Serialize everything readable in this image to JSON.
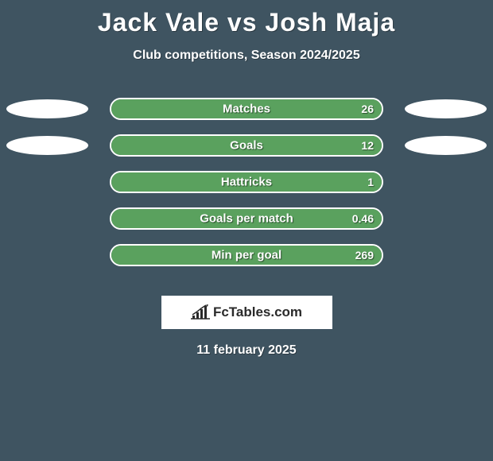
{
  "title": "Jack Vale vs Josh Maja",
  "subtitle": "Club competitions, Season 2024/2025",
  "date": "11 february 2025",
  "logo_text": "FcTables.com",
  "colors": {
    "background": "#3f5461",
    "bar_border": "#ffffff",
    "bar_fill": "#5aa15e",
    "text": "#ffffff",
    "ellipse": "#ffffff"
  },
  "stats": [
    {
      "label": "Matches",
      "value_right": "26",
      "fill_percent": 100,
      "show_left_ellipse": true,
      "show_right_ellipse": true
    },
    {
      "label": "Goals",
      "value_right": "12",
      "fill_percent": 100,
      "show_left_ellipse": true,
      "show_right_ellipse": true
    },
    {
      "label": "Hattricks",
      "value_right": "1",
      "fill_percent": 100,
      "show_left_ellipse": false,
      "show_right_ellipse": false
    },
    {
      "label": "Goals per match",
      "value_right": "0.46",
      "fill_percent": 100,
      "show_left_ellipse": false,
      "show_right_ellipse": false
    },
    {
      "label": "Min per goal",
      "value_right": "269",
      "fill_percent": 100,
      "show_left_ellipse": false,
      "show_right_ellipse": false
    }
  ]
}
